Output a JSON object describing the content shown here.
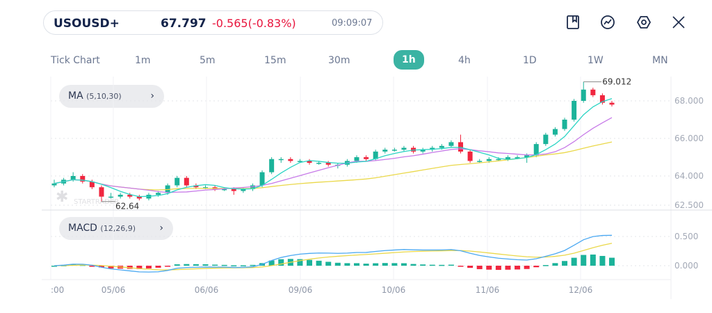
{
  "header": {
    "symbol": "USOUSD+",
    "price": "67.797",
    "change": "-0.565(-0.83%)",
    "time": "09:09:07"
  },
  "toolbar_icons": [
    "bookmark-icon",
    "indicator-icon",
    "settings-icon",
    "close-icon"
  ],
  "timeframes": [
    "Tick Chart",
    "1m",
    "5m",
    "15m",
    "30m",
    "1h",
    "4h",
    "1D",
    "1W",
    "MN"
  ],
  "active_timeframe": "1h",
  "indicators": {
    "ma_label": "MA",
    "ma_params": "(5,10,30)",
    "macd_label": "MACD",
    "macd_params": "(12,26,9)"
  },
  "watermark": "STARTRADER",
  "colors": {
    "up": "#1bb39a",
    "down": "#f0263f",
    "ma5": "#2ad4c4",
    "ma10": "#c77ae8",
    "ma30": "#ead84a",
    "macd": "#4aa8f2",
    "signal": "#ead84a",
    "accent": "#3bb3a3"
  },
  "chart_data": {
    "type": "candlestick",
    "price_axis_ticks": [
      "68.000",
      "66.000",
      "64.000",
      "62.500"
    ],
    "macd_axis_ticks": [
      "0.500",
      "0.000"
    ],
    "x_ticks": [
      ":00",
      "05/06",
      "06/06",
      "09/06",
      "10/06",
      "11/06",
      "12/06"
    ],
    "high_label": "69.012",
    "low_label": "62.64",
    "candles": [
      [
        63.5,
        63.8,
        63.4,
        63.6
      ],
      [
        63.6,
        63.9,
        63.5,
        63.8
      ],
      [
        63.8,
        64.2,
        63.7,
        64.0
      ],
      [
        64.0,
        64.1,
        63.6,
        63.7
      ],
      [
        63.7,
        63.8,
        63.3,
        63.4
      ],
      [
        63.4,
        63.5,
        62.64,
        62.9
      ],
      [
        62.9,
        63.1,
        62.8,
        62.9
      ],
      [
        62.9,
        63.1,
        62.8,
        63.0
      ],
      [
        63.0,
        63.1,
        62.8,
        62.9
      ],
      [
        62.9,
        63.0,
        62.7,
        62.8
      ],
      [
        62.8,
        63.1,
        62.7,
        63.0
      ],
      [
        63.0,
        63.2,
        62.9,
        63.1
      ],
      [
        63.1,
        63.6,
        63.0,
        63.5
      ],
      [
        63.5,
        64.0,
        63.4,
        63.9
      ],
      [
        63.9,
        64.0,
        63.4,
        63.5
      ],
      [
        63.5,
        63.6,
        63.3,
        63.4
      ],
      [
        63.4,
        63.5,
        63.3,
        63.4
      ],
      [
        63.4,
        63.5,
        63.2,
        63.3
      ],
      [
        63.3,
        63.4,
        63.2,
        63.3
      ],
      [
        63.3,
        63.4,
        63.0,
        63.2
      ],
      [
        63.2,
        63.4,
        63.1,
        63.3
      ],
      [
        63.3,
        63.6,
        63.2,
        63.5
      ],
      [
        63.5,
        64.3,
        63.4,
        64.2
      ],
      [
        64.2,
        65.0,
        64.1,
        64.9
      ],
      [
        64.9,
        65.0,
        64.7,
        64.9
      ],
      [
        64.9,
        65.0,
        64.7,
        64.8
      ],
      [
        64.8,
        64.9,
        64.7,
        64.8
      ],
      [
        64.8,
        64.9,
        64.6,
        64.7
      ],
      [
        64.7,
        64.8,
        64.6,
        64.7
      ],
      [
        64.7,
        64.8,
        64.5,
        64.6
      ],
      [
        64.6,
        64.7,
        64.4,
        64.6
      ],
      [
        64.6,
        64.9,
        64.5,
        64.8
      ],
      [
        64.8,
        65.1,
        64.7,
        65.0
      ],
      [
        65.0,
        65.1,
        64.8,
        64.9
      ],
      [
        64.9,
        65.4,
        64.8,
        65.3
      ],
      [
        65.3,
        65.5,
        65.2,
        65.4
      ],
      [
        65.4,
        65.5,
        65.3,
        65.4
      ],
      [
        65.4,
        65.6,
        65.3,
        65.5
      ],
      [
        65.5,
        65.6,
        65.2,
        65.3
      ],
      [
        65.3,
        65.5,
        65.2,
        65.4
      ],
      [
        65.4,
        65.6,
        65.3,
        65.5
      ],
      [
        65.5,
        65.7,
        65.4,
        65.6
      ],
      [
        65.6,
        65.9,
        65.5,
        65.8
      ],
      [
        65.8,
        66.2,
        65.2,
        65.3
      ],
      [
        65.3,
        65.4,
        64.7,
        64.8
      ],
      [
        64.8,
        64.9,
        64.7,
        64.8
      ],
      [
        64.8,
        65.0,
        64.7,
        64.9
      ],
      [
        64.9,
        65.0,
        64.8,
        64.9
      ],
      [
        64.9,
        65.1,
        64.8,
        65.0
      ],
      [
        65.0,
        65.1,
        64.9,
        65.0
      ],
      [
        65.0,
        65.2,
        64.7,
        65.1
      ],
      [
        65.1,
        65.8,
        65.0,
        65.7
      ],
      [
        65.7,
        66.3,
        65.6,
        66.2
      ],
      [
        66.2,
        66.6,
        66.1,
        66.5
      ],
      [
        66.5,
        67.1,
        66.4,
        67.0
      ],
      [
        67.0,
        68.1,
        66.9,
        68.0
      ],
      [
        68.0,
        69.012,
        67.9,
        68.6
      ],
      [
        68.6,
        68.7,
        68.2,
        68.3
      ],
      [
        68.3,
        68.4,
        67.8,
        67.9
      ],
      [
        67.9,
        68.0,
        67.7,
        67.8
      ]
    ]
  }
}
